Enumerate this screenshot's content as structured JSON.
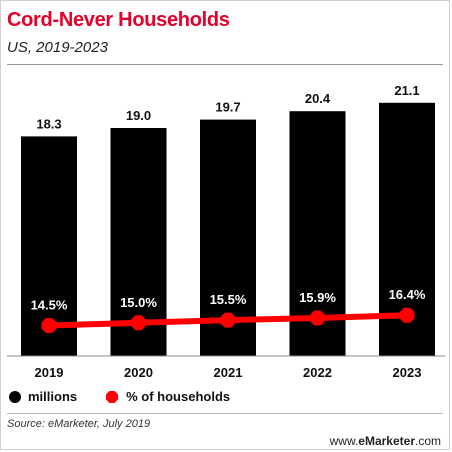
{
  "chart_data": {
    "type": "bar",
    "title": "Cord-Never Households",
    "subtitle": "US, 2019-2023",
    "categories": [
      "2019",
      "2020",
      "2021",
      "2022",
      "2023"
    ],
    "series": [
      {
        "name": "millions",
        "type": "bar",
        "values": [
          18.3,
          19.0,
          19.7,
          20.4,
          21.1
        ],
        "labels": [
          "18.3",
          "19.0",
          "19.7",
          "20.4",
          "21.1"
        ],
        "color": "#000000"
      },
      {
        "name": "% of households",
        "type": "line",
        "values": [
          14.5,
          15.0,
          15.5,
          15.9,
          16.4
        ],
        "labels": [
          "14.5%",
          "15.0%",
          "15.5%",
          "15.9%",
          "16.4%"
        ],
        "color": "#ff0000"
      }
    ],
    "ylim": [
      0,
      23
    ],
    "legend_position": "bottom-left",
    "grid": false
  },
  "source": "Source: eMarketer, July 2019",
  "logo": {
    "prefix": "www.",
    "brand": "eMarketer",
    "suffix": ".com"
  }
}
